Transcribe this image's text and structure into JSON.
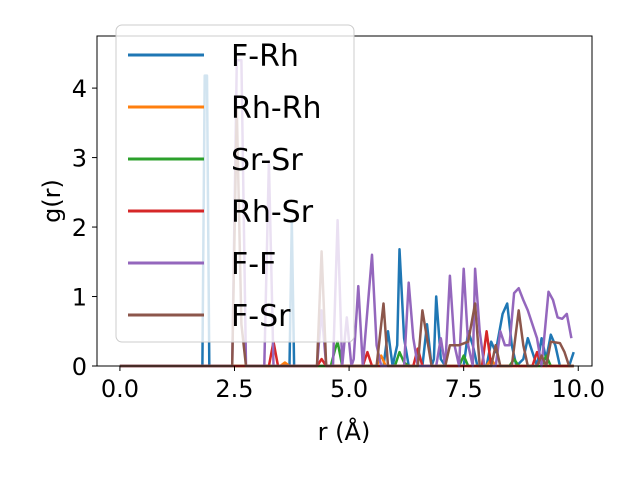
{
  "chart_data": {
    "type": "line",
    "xlabel": "r (Å)",
    "ylabel": "g(r)",
    "xlim": [
      -0.5,
      10.3
    ],
    "ylim": [
      0,
      4.75
    ],
    "xticks": [
      0.0,
      2.5,
      5.0,
      7.5,
      10.0
    ],
    "xtick_labels": [
      "0.0",
      "2.5",
      "5.0",
      "7.5",
      "10.0"
    ],
    "yticks": [
      0,
      1,
      2,
      3,
      4
    ],
    "ytick_labels": [
      "0",
      "1",
      "2",
      "3",
      "4"
    ],
    "grid": false,
    "legend_position": "upper-left",
    "series": [
      {
        "name": "F-Rh",
        "color": "#1f77b4",
        "points": [
          [
            0,
            0
          ],
          [
            1.8,
            0
          ],
          [
            1.85,
            4.18
          ],
          [
            1.9,
            4.18
          ],
          [
            1.95,
            0
          ],
          [
            3.7,
            0
          ],
          [
            3.75,
            2.1
          ],
          [
            3.8,
            0
          ],
          [
            5.75,
            0
          ],
          [
            5.85,
            0.5
          ],
          [
            5.95,
            0
          ],
          [
            6.05,
            0.3
          ],
          [
            6.1,
            1.68
          ],
          [
            6.2,
            0.4
          ],
          [
            6.3,
            0
          ],
          [
            6.6,
            0
          ],
          [
            6.7,
            0.6
          ],
          [
            6.8,
            0
          ],
          [
            6.85,
            0.1
          ],
          [
            6.9,
            1.0
          ],
          [
            7.0,
            0.1
          ],
          [
            7.1,
            0
          ],
          [
            7.5,
            0
          ],
          [
            7.6,
            0.5
          ],
          [
            7.7,
            0.3
          ],
          [
            7.8,
            0
          ],
          [
            8.0,
            0
          ],
          [
            8.1,
            0.35
          ],
          [
            8.2,
            0.2
          ],
          [
            8.35,
            0.75
          ],
          [
            8.45,
            0.9
          ],
          [
            8.55,
            0.3
          ],
          [
            8.65,
            0
          ],
          [
            8.8,
            0.1
          ],
          [
            8.9,
            0.4
          ],
          [
            9.0,
            0.2
          ],
          [
            9.1,
            0
          ],
          [
            9.2,
            0.4
          ],
          [
            9.3,
            0.1
          ],
          [
            9.4,
            0.45
          ],
          [
            9.5,
            0.3
          ],
          [
            9.6,
            0
          ],
          [
            9.8,
            0
          ],
          [
            9.9,
            0.2
          ]
        ]
      },
      {
        "name": "Rh-Rh",
        "color": "#ff7f0e",
        "points": [
          [
            0,
            0
          ],
          [
            3.5,
            0
          ],
          [
            3.6,
            0.05
          ],
          [
            3.7,
            0
          ],
          [
            5.6,
            0
          ],
          [
            5.7,
            0.15
          ],
          [
            5.8,
            0
          ],
          [
            8.0,
            0
          ],
          [
            8.1,
            0.1
          ],
          [
            8.2,
            0
          ],
          [
            9.9,
            0
          ]
        ]
      },
      {
        "name": "Sr-Sr",
        "color": "#2ca02c",
        "points": [
          [
            0,
            0
          ],
          [
            4.6,
            0
          ],
          [
            4.7,
            0.25
          ],
          [
            4.75,
            0.35
          ],
          [
            4.85,
            0
          ],
          [
            6.0,
            0
          ],
          [
            6.1,
            0.2
          ],
          [
            6.2,
            0.05
          ],
          [
            6.3,
            0
          ],
          [
            7.4,
            0
          ],
          [
            7.5,
            0.15
          ],
          [
            7.6,
            0
          ],
          [
            8.5,
            0
          ],
          [
            8.6,
            0.1
          ],
          [
            8.7,
            0
          ],
          [
            9.2,
            0
          ],
          [
            9.3,
            0.15
          ],
          [
            9.4,
            0
          ],
          [
            9.9,
            0
          ]
        ]
      },
      {
        "name": "Rh-Sr",
        "color": "#d62728",
        "points": [
          [
            0,
            0
          ],
          [
            3.25,
            0
          ],
          [
            3.35,
            0.35
          ],
          [
            3.45,
            0
          ],
          [
            4.3,
            0
          ],
          [
            4.4,
            0.1
          ],
          [
            4.5,
            0
          ],
          [
            5.3,
            0
          ],
          [
            5.4,
            0.2
          ],
          [
            5.5,
            0
          ],
          [
            6.4,
            0
          ],
          [
            6.5,
            0.25
          ],
          [
            6.6,
            0
          ],
          [
            7.9,
            0
          ],
          [
            8.0,
            0.5
          ],
          [
            8.1,
            0
          ],
          [
            9.0,
            0
          ],
          [
            9.1,
            0.2
          ],
          [
            9.2,
            0
          ],
          [
            9.9,
            0
          ]
        ]
      },
      {
        "name": "F-F",
        "color": "#9467bd",
        "points": [
          [
            0,
            0
          ],
          [
            2.45,
            0
          ],
          [
            2.55,
            4.4
          ],
          [
            2.65,
            4.4
          ],
          [
            2.75,
            0
          ],
          [
            3.15,
            0
          ],
          [
            3.25,
            2.95
          ],
          [
            3.35,
            0
          ],
          [
            4.3,
            0
          ],
          [
            4.4,
            0.8
          ],
          [
            4.5,
            0
          ],
          [
            4.65,
            0
          ],
          [
            4.75,
            2.1
          ],
          [
            4.85,
            0
          ],
          [
            4.95,
            0.7
          ],
          [
            5.05,
            0
          ],
          [
            5.1,
            0.1
          ],
          [
            5.2,
            1.15
          ],
          [
            5.3,
            0
          ],
          [
            5.5,
            1.6
          ],
          [
            5.6,
            0.3
          ],
          [
            5.7,
            0
          ],
          [
            6.2,
            0
          ],
          [
            6.3,
            1.2
          ],
          [
            6.4,
            0.4
          ],
          [
            6.5,
            0
          ],
          [
            6.9,
            0
          ],
          [
            7.0,
            0.4
          ],
          [
            7.1,
            0
          ],
          [
            7.2,
            1.3
          ],
          [
            7.3,
            0.3
          ],
          [
            7.4,
            0
          ],
          [
            7.5,
            1.4
          ],
          [
            7.6,
            0.3
          ],
          [
            7.7,
            0
          ],
          [
            7.75,
            1.4
          ],
          [
            7.85,
            0.5
          ],
          [
            7.95,
            0
          ],
          [
            8.2,
            0
          ],
          [
            8.3,
            0.5
          ],
          [
            8.4,
            0.3
          ],
          [
            8.5,
            0.3
          ],
          [
            8.6,
            1.05
          ],
          [
            8.7,
            1.12
          ],
          [
            8.8,
            0.95
          ],
          [
            8.9,
            0.8
          ],
          [
            9.0,
            0.6
          ],
          [
            9.1,
            0.4
          ],
          [
            9.2,
            0
          ],
          [
            9.35,
            1.07
          ],
          [
            9.45,
            0.95
          ],
          [
            9.55,
            0.7
          ],
          [
            9.65,
            0.68
          ],
          [
            9.75,
            0.75
          ],
          [
            9.85,
            0.4
          ]
        ]
      },
      {
        "name": "F-Sr",
        "color": "#8c564b",
        "points": [
          [
            0,
            0
          ],
          [
            2.45,
            0
          ],
          [
            2.55,
            3.7
          ],
          [
            2.65,
            0.6
          ],
          [
            2.75,
            0
          ],
          [
            4.3,
            0
          ],
          [
            4.4,
            1.65
          ],
          [
            4.5,
            0
          ],
          [
            5.6,
            0
          ],
          [
            5.75,
            0.9
          ],
          [
            5.85,
            0
          ],
          [
            6.5,
            0
          ],
          [
            6.6,
            0.8
          ],
          [
            6.7,
            0.4
          ],
          [
            6.8,
            0
          ],
          [
            7.1,
            0
          ],
          [
            7.2,
            0.3
          ],
          [
            7.4,
            0.3
          ],
          [
            7.6,
            0.35
          ],
          [
            7.75,
            0.9
          ],
          [
            7.85,
            0
          ],
          [
            8.1,
            0
          ],
          [
            8.2,
            0.3
          ],
          [
            8.3,
            0
          ],
          [
            8.55,
            0
          ],
          [
            8.7,
            0.8
          ],
          [
            8.8,
            0.3
          ],
          [
            8.9,
            0
          ],
          [
            9.1,
            0
          ],
          [
            9.2,
            0.15
          ],
          [
            9.3,
            0
          ],
          [
            9.4,
            0.35
          ],
          [
            9.6,
            0.33
          ],
          [
            9.7,
            0.2
          ],
          [
            9.8,
            0
          ],
          [
            9.9,
            0
          ]
        ]
      }
    ]
  }
}
